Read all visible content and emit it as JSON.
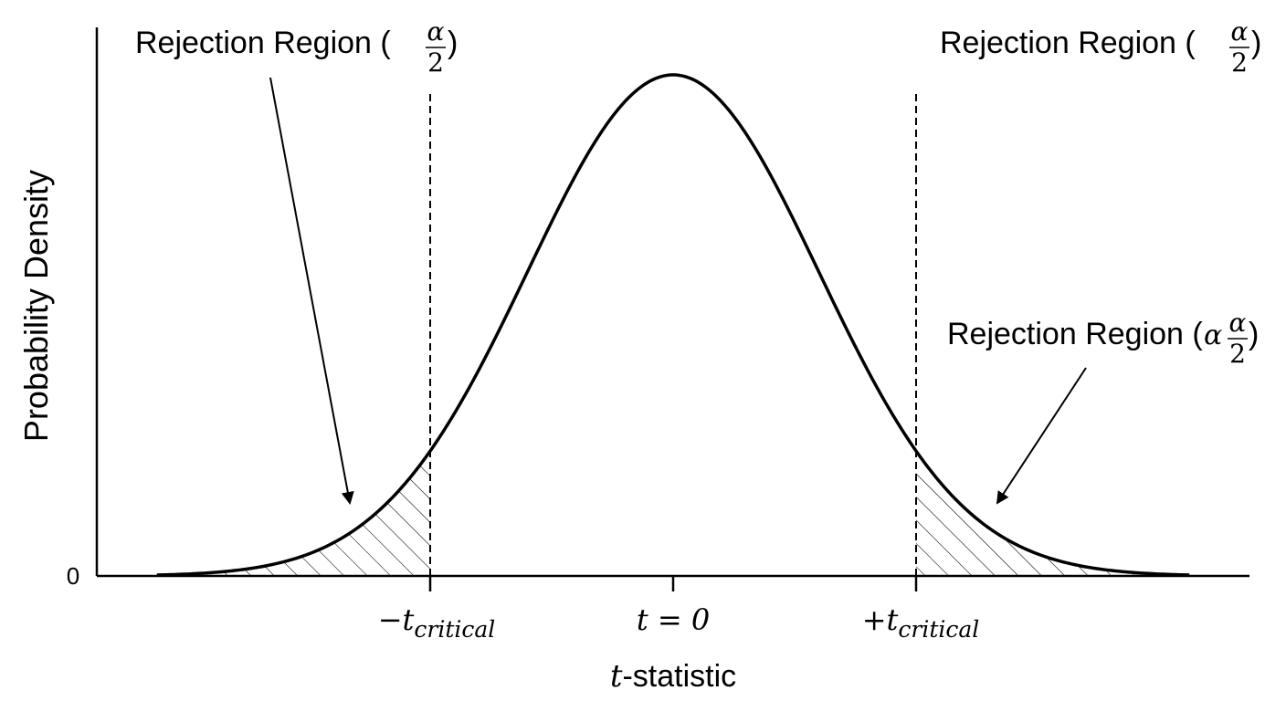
{
  "diagram": {
    "y_axis_label": "Probability Density",
    "x_axis_label_var": "t",
    "x_axis_label_rest": "-statistic",
    "y_zero_label": "0",
    "ticks": [
      {
        "sign": "−",
        "var": "t",
        "sub": "critical"
      },
      {
        "center": "t = 0"
      },
      {
        "sign": "+",
        "var": "t",
        "sub": "critical"
      }
    ],
    "annotations": {
      "left_top": {
        "text": "Rejection Region (",
        "num": "α",
        "den": "2",
        "close": ")"
      },
      "right_top": {
        "text": "Rejection Region (",
        "num": "α",
        "den": "2",
        "close": ")"
      },
      "right_mid": {
        "text": "Rejection Region (",
        "alpha_prefix": "α",
        "num": "α",
        "den": "2",
        "close": ")"
      }
    },
    "distribution": {
      "type": "t-distribution",
      "critical_value": 2.0,
      "x_range": [
        -4.25,
        4.25
      ]
    },
    "colors": {
      "curve": "#000000",
      "hatch": "#000000",
      "background": "#ffffff"
    }
  }
}
